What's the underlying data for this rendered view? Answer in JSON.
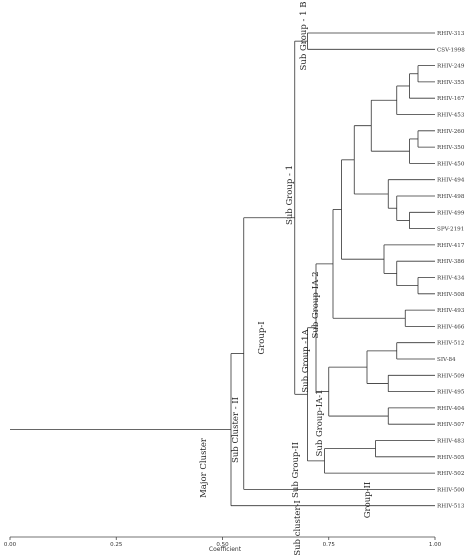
{
  "chart_data": {
    "type": "dendrogram",
    "xlabel": "Coefficient",
    "xlim": [
      0.0,
      1.0
    ],
    "xticks": [
      "0.00",
      "0.25",
      "0.50",
      "0.75",
      "1.00"
    ],
    "leaves": [
      "RHIV-313",
      "CSV-1998",
      "RHIV-249",
      "RHIV-355",
      "RHIV-167",
      "RHIV-453",
      "RHIV-260",
      "RHIV-350",
      "RHIV-450",
      "RHIV-494",
      "RHIV-498",
      "RHIV-499",
      "SPV-2191",
      "RHIV-417",
      "RHIV-386",
      "RHIV-434",
      "RHIV-508",
      "RHIV-493",
      "RHIV-466",
      "RHIV-512",
      "SIV-84",
      "RHIV-509",
      "RHIV-495",
      "RHIV-404",
      "RHIV-507",
      "RHIV-483",
      "RHIV-505",
      "RHIV-502",
      "RHIV-500",
      "RHIV-513"
    ],
    "merges": [
      {
        "id": "m1",
        "children": [
          "RHIV-313",
          "CSV-1998"
        ],
        "height": 0.7
      },
      {
        "id": "m2",
        "children": [
          "RHIV-249",
          "RHIV-355"
        ],
        "height": 0.96
      },
      {
        "id": "m3",
        "children": [
          "m2",
          "RHIV-167"
        ],
        "height": 0.94
      },
      {
        "id": "m4",
        "children": [
          "m3",
          "RHIV-453"
        ],
        "height": 0.91
      },
      {
        "id": "m5",
        "children": [
          "RHIV-260",
          "RHIV-350"
        ],
        "height": 0.96
      },
      {
        "id": "m6",
        "children": [
          "m5",
          "RHIV-450"
        ],
        "height": 0.94
      },
      {
        "id": "m7",
        "children": [
          "m4",
          "m6"
        ],
        "height": 0.85
      },
      {
        "id": "m8",
        "children": [
          "RHIV-499",
          "SPV-2191"
        ],
        "height": 0.94
      },
      {
        "id": "m9",
        "children": [
          "RHIV-498",
          "m8"
        ],
        "height": 0.91
      },
      {
        "id": "m10",
        "children": [
          "RHIV-494",
          "m9"
        ],
        "height": 0.89
      },
      {
        "id": "m11",
        "children": [
          "m7",
          "m10"
        ],
        "height": 0.81
      },
      {
        "id": "m12",
        "children": [
          "RHIV-434",
          "RHIV-508"
        ],
        "height": 0.96
      },
      {
        "id": "m13",
        "children": [
          "RHIV-386",
          "m12"
        ],
        "height": 0.91
      },
      {
        "id": "m14",
        "children": [
          "RHIV-417",
          "m13"
        ],
        "height": 0.88
      },
      {
        "id": "m15",
        "children": [
          "m11",
          "m14"
        ],
        "height": 0.78
      },
      {
        "id": "m16",
        "children": [
          "RHIV-493",
          "RHIV-466"
        ],
        "height": 0.93
      },
      {
        "id": "m17",
        "children": [
          "m15",
          "m16"
        ],
        "height": 0.76
      },
      {
        "id": "m18",
        "children": [
          "RHIV-512",
          "SIV-84"
        ],
        "height": 0.91
      },
      {
        "id": "m19",
        "children": [
          "RHIV-509",
          "RHIV-495"
        ],
        "height": 0.89
      },
      {
        "id": "m20",
        "children": [
          "m18",
          "m19"
        ],
        "height": 0.84
      },
      {
        "id": "m21",
        "children": [
          "RHIV-404",
          "RHIV-507"
        ],
        "height": 0.89
      },
      {
        "id": "m22",
        "children": [
          "m20",
          "m21"
        ],
        "height": 0.75
      },
      {
        "id": "m23",
        "children": [
          "m17",
          "m22"
        ],
        "height": 0.72
      },
      {
        "id": "m24",
        "children": [
          "RHIV-483",
          "RHIV-505"
        ],
        "height": 0.86
      },
      {
        "id": "m25",
        "children": [
          "m24",
          "RHIV-502"
        ],
        "height": 0.74
      },
      {
        "id": "m26",
        "children": [
          "m23",
          "m25"
        ],
        "height": 0.7
      },
      {
        "id": "m27",
        "children": [
          "m1",
          "m26"
        ],
        "height": 0.67
      },
      {
        "id": "m28",
        "children": [
          "m27",
          "RHIV-500"
        ],
        "height": 0.55
      },
      {
        "id": "m29",
        "children": [
          "m28",
          "RHIV-513"
        ],
        "height": 0.52
      },
      {
        "id": "root",
        "children": [
          "m29"
        ],
        "height": 0.0
      }
    ]
  },
  "labels": {
    "major_cluster": "Major Cluster",
    "sub_cluster_ii": "Sub Cluster - II",
    "sub_cluster_i": "Sub cluster-I",
    "group_i": "Group-I",
    "group_ii": "Group-II",
    "sub_group_1": "Sub Group - 1",
    "sub_group_1b": "Sub Group - 1 B",
    "sub_group_1a": "Sub Group -1A",
    "sub_group_1a_2": "Sub Group-IA-2",
    "sub_group_1a_1": "Sub Group-IA-1",
    "sub_group_ii": "Sub Group-II"
  }
}
